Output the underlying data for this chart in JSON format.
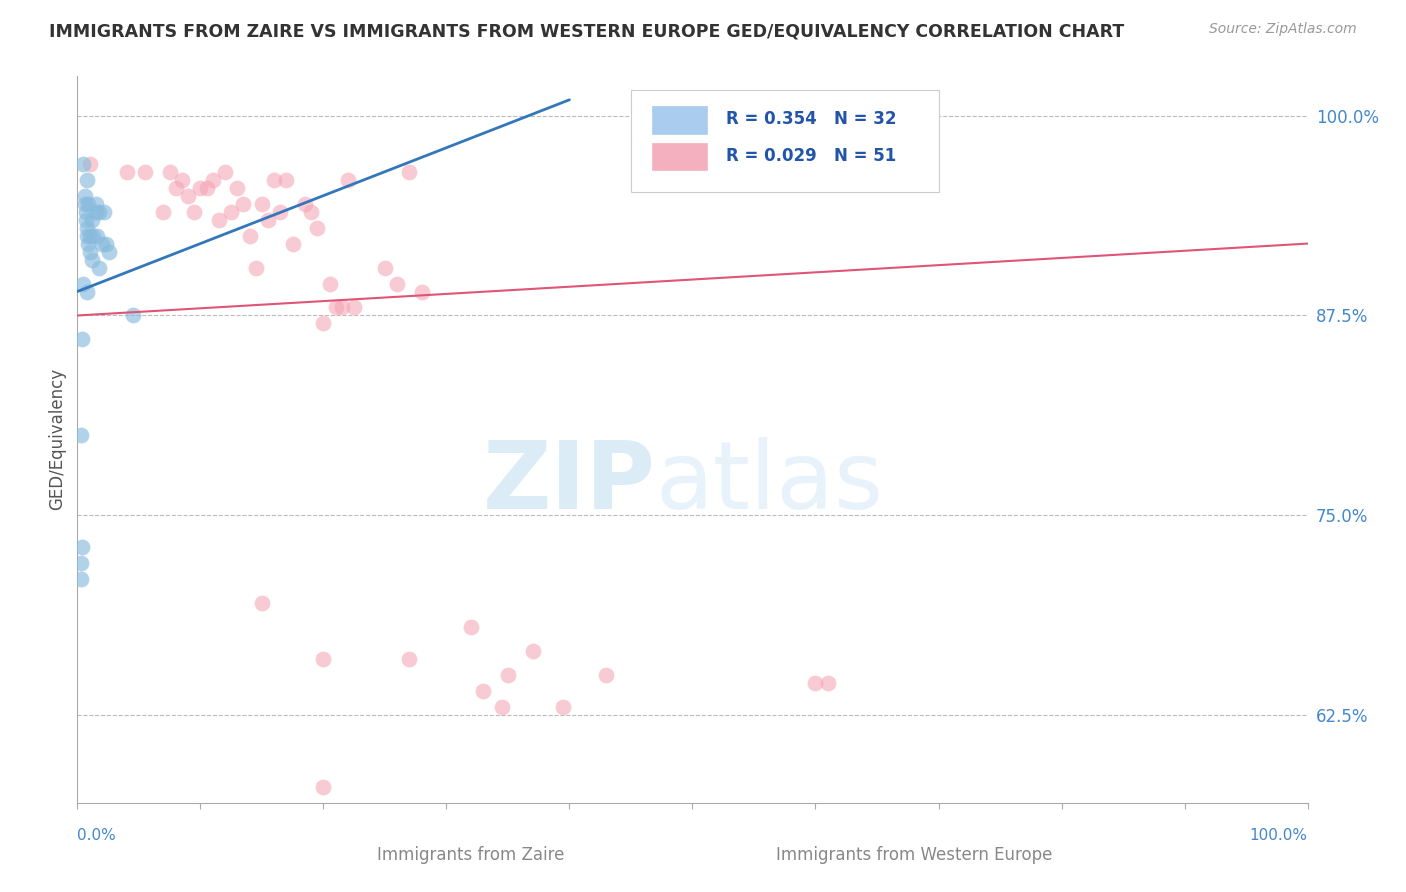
{
  "title": "IMMIGRANTS FROM ZAIRE VS IMMIGRANTS FROM WESTERN EUROPE GED/EQUIVALENCY CORRELATION CHART",
  "source": "Source: ZipAtlas.com",
  "ylabel": "GED/Equivalency",
  "ylabel_right_ticks": [
    "100.0%",
    "87.5%",
    "75.0%",
    "62.5%"
  ],
  "ylabel_right_vals": [
    1.0,
    0.875,
    0.75,
    0.625
  ],
  "legend_blue_text": "R = 0.354   N = 32",
  "legend_pink_text": "R = 0.029   N = 51",
  "blue_color": "#88bbdd",
  "pink_color": "#f4a0b0",
  "blue_line_color": "#3377bb",
  "pink_line_color": "#e05575",
  "background_color": "#ffffff",
  "grid_color": "#bbbbbb",
  "right_label_color": "#4488cc",
  "xlim": [
    0.0,
    1.0
  ],
  "ylim": [
    0.57,
    1.025
  ],
  "blue_scatter": [
    [
      0.003,
      0.71
    ],
    [
      0.003,
      0.72
    ],
    [
      0.003,
      0.8
    ],
    [
      0.004,
      0.73
    ],
    [
      0.004,
      0.86
    ],
    [
      0.005,
      0.895
    ],
    [
      0.005,
      0.97
    ],
    [
      0.006,
      0.945
    ],
    [
      0.006,
      0.95
    ],
    [
      0.007,
      0.935
    ],
    [
      0.007,
      0.94
    ],
    [
      0.008,
      0.89
    ],
    [
      0.008,
      0.925
    ],
    [
      0.008,
      0.93
    ],
    [
      0.008,
      0.96
    ],
    [
      0.009,
      0.92
    ],
    [
      0.009,
      0.945
    ],
    [
      0.01,
      0.915
    ],
    [
      0.01,
      0.925
    ],
    [
      0.012,
      0.91
    ],
    [
      0.012,
      0.935
    ],
    [
      0.013,
      0.925
    ],
    [
      0.015,
      0.94
    ],
    [
      0.015,
      0.945
    ],
    [
      0.016,
      0.925
    ],
    [
      0.018,
      0.905
    ],
    [
      0.018,
      0.94
    ],
    [
      0.02,
      0.92
    ],
    [
      0.022,
      0.94
    ],
    [
      0.023,
      0.92
    ],
    [
      0.026,
      0.915
    ],
    [
      0.045,
      0.875
    ]
  ],
  "pink_scatter": [
    [
      0.01,
      0.97
    ],
    [
      0.04,
      0.965
    ],
    [
      0.055,
      0.965
    ],
    [
      0.07,
      0.94
    ],
    [
      0.075,
      0.965
    ],
    [
      0.08,
      0.955
    ],
    [
      0.085,
      0.96
    ],
    [
      0.09,
      0.95
    ],
    [
      0.095,
      0.94
    ],
    [
      0.1,
      0.955
    ],
    [
      0.105,
      0.955
    ],
    [
      0.11,
      0.96
    ],
    [
      0.115,
      0.935
    ],
    [
      0.12,
      0.965
    ],
    [
      0.125,
      0.94
    ],
    [
      0.13,
      0.955
    ],
    [
      0.135,
      0.945
    ],
    [
      0.14,
      0.925
    ],
    [
      0.145,
      0.905
    ],
    [
      0.15,
      0.945
    ],
    [
      0.155,
      0.935
    ],
    [
      0.16,
      0.96
    ],
    [
      0.165,
      0.94
    ],
    [
      0.17,
      0.96
    ],
    [
      0.175,
      0.92
    ],
    [
      0.185,
      0.945
    ],
    [
      0.19,
      0.94
    ],
    [
      0.195,
      0.93
    ],
    [
      0.2,
      0.87
    ],
    [
      0.205,
      0.895
    ],
    [
      0.21,
      0.88
    ],
    [
      0.215,
      0.88
    ],
    [
      0.22,
      0.96
    ],
    [
      0.225,
      0.88
    ],
    [
      0.25,
      0.905
    ],
    [
      0.26,
      0.895
    ],
    [
      0.27,
      0.965
    ],
    [
      0.28,
      0.89
    ],
    [
      0.15,
      0.695
    ],
    [
      0.2,
      0.66
    ],
    [
      0.2,
      0.58
    ],
    [
      0.27,
      0.66
    ],
    [
      0.32,
      0.68
    ],
    [
      0.33,
      0.64
    ],
    [
      0.345,
      0.63
    ],
    [
      0.35,
      0.65
    ],
    [
      0.37,
      0.665
    ],
    [
      0.395,
      0.63
    ],
    [
      0.43,
      0.65
    ],
    [
      0.6,
      0.645
    ],
    [
      0.61,
      0.645
    ]
  ],
  "blue_line": [
    [
      0.0,
      0.89
    ],
    [
      0.4,
      1.01
    ]
  ],
  "pink_line": [
    [
      0.0,
      0.875
    ],
    [
      1.0,
      0.92
    ]
  ]
}
